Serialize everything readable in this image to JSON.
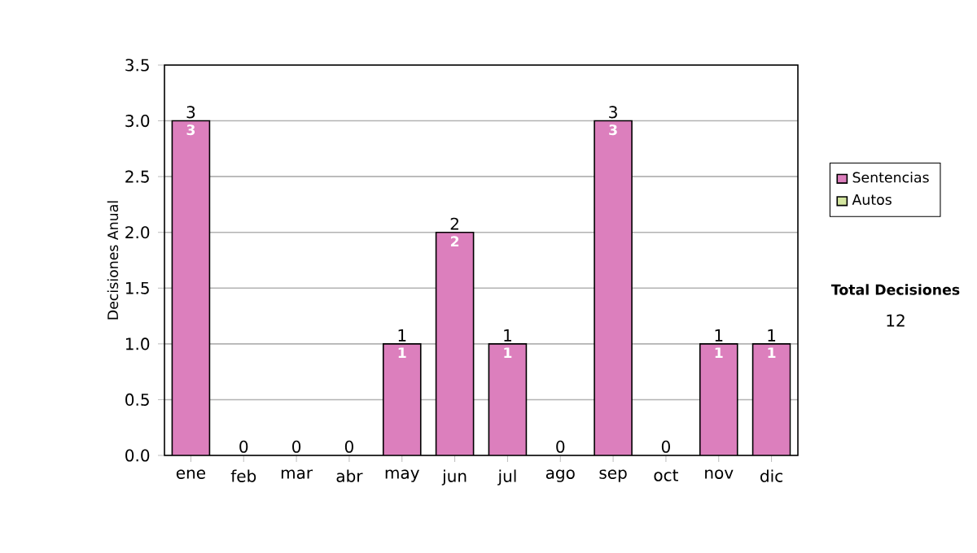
{
  "chart_data": {
    "type": "bar",
    "stacked": true,
    "ylabel": "Decisiones Anual",
    "categories": [
      "ene",
      "feb",
      "mar",
      "abr",
      "may",
      "jun",
      "jul",
      "ago",
      "sep",
      "oct",
      "nov",
      "dic"
    ],
    "series": [
      {
        "name": "Sentencias",
        "color": "#dc7fbd",
        "values": [
          3,
          0,
          0,
          0,
          1,
          2,
          1,
          0,
          3,
          0,
          1,
          1
        ],
        "value_labels": [
          "3",
          null,
          null,
          null,
          "1",
          "2",
          "1",
          null,
          "3",
          null,
          "1",
          "1"
        ]
      },
      {
        "name": "Autos",
        "color": "#d4e6a0",
        "values": [
          0,
          0,
          0,
          0,
          0,
          0,
          0,
          0,
          0,
          0,
          0,
          0
        ]
      }
    ],
    "totals": [
      "3",
      "0",
      "0",
      "0",
      "1",
      "2",
      "1",
      "0",
      "3",
      "0",
      "1",
      "1"
    ],
    "ylim": [
      0,
      3.5
    ],
    "yticks": [
      {
        "value": 0,
        "label": "0.0"
      },
      {
        "value": 0.5,
        "label": "0.5"
      },
      {
        "value": 1,
        "label": "1.0"
      },
      {
        "value": 1.5,
        "label": "1.5"
      },
      {
        "value": 2,
        "label": "2.0"
      },
      {
        "value": 2.5,
        "label": "2.5"
      },
      {
        "value": 3,
        "label": "3.0"
      },
      {
        "value": 3.5,
        "label": "3.5"
      }
    ],
    "grid": "y",
    "legend": "right",
    "annotations": [
      "Total Decisiones",
      "12"
    ]
  }
}
